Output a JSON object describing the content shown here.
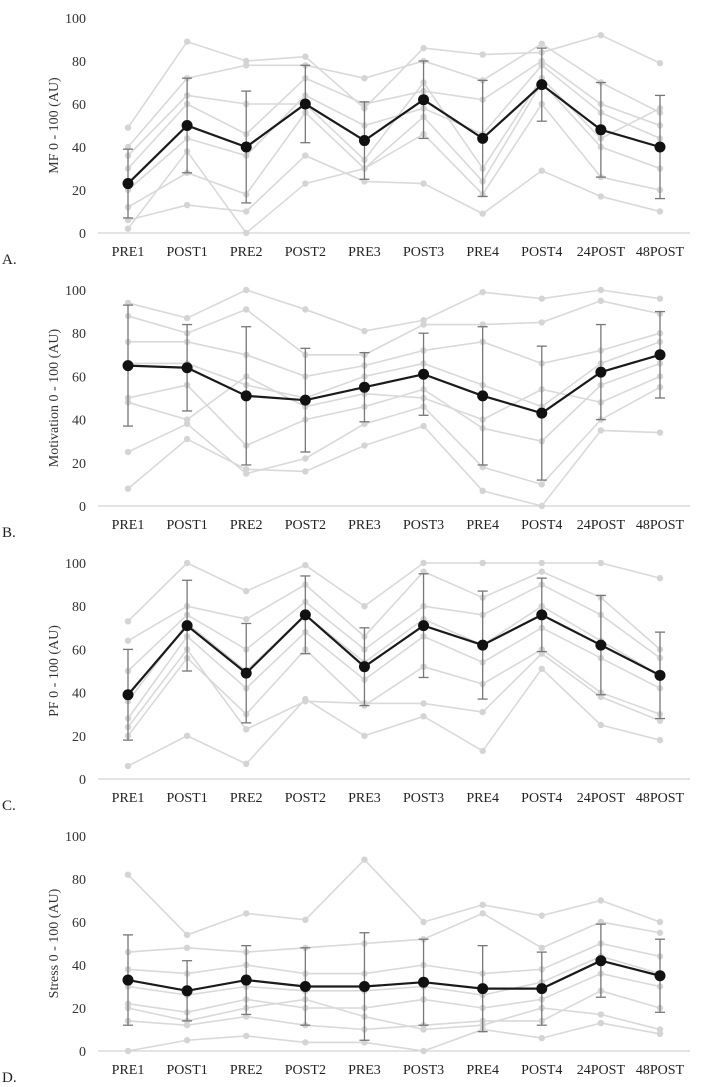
{
  "chart_data": [
    {
      "type": "line",
      "panel_label": "A.",
      "ylabel": "MF 0 - 100 (AU)",
      "ylim": [
        0,
        100
      ],
      "yticks": [
        0,
        20,
        40,
        60,
        80,
        100
      ],
      "categories": [
        "PRE1",
        "POST1",
        "PRE2",
        "POST2",
        "PRE3",
        "POST3",
        "PRE4",
        "POST4",
        "24POST",
        "48POST"
      ],
      "series": [
        {
          "name": "Mean",
          "values": [
            23,
            50,
            40,
            60,
            43,
            62,
            44,
            69,
            48,
            40
          ],
          "sd": [
            16,
            22,
            26,
            18,
            18,
            18,
            27,
            17,
            22,
            24
          ]
        }
      ],
      "participants": [
        [
          49,
          89,
          80,
          82,
          58,
          86,
          83,
          84,
          92,
          79
        ],
        [
          40,
          72,
          78,
          78,
          72,
          80,
          71,
          88,
          70,
          56
        ],
        [
          30,
          60,
          46,
          72,
          60,
          66,
          62,
          80,
          60,
          50
        ],
        [
          20,
          44,
          36,
          64,
          50,
          58,
          46,
          78,
          56,
          44
        ],
        [
          12,
          28,
          18,
          56,
          30,
          54,
          24,
          70,
          40,
          30
        ],
        [
          6,
          13,
          10,
          36,
          24,
          23,
          9,
          29,
          17,
          10
        ],
        [
          2,
          38,
          0,
          23,
          30,
          46,
          18,
          60,
          26,
          20
        ],
        [
          36,
          64,
          60,
          60,
          34,
          70,
          30,
          72,
          44,
          58
        ]
      ]
    },
    {
      "type": "line",
      "panel_label": "B.",
      "ylabel": "Motivation 0 - 100 (AU)",
      "ylim": [
        0,
        100
      ],
      "yticks": [
        0,
        20,
        40,
        60,
        80,
        100
      ],
      "categories": [
        "PRE1",
        "POST1",
        "PRE2",
        "POST2",
        "PRE3",
        "POST3",
        "PRE4",
        "POST4",
        "24POST",
        "48POST"
      ],
      "series": [
        {
          "name": "Mean",
          "values": [
            65,
            64,
            51,
            49,
            55,
            61,
            51,
            43,
            62,
            70
          ],
          "sd": [
            28,
            20,
            32,
            24,
            16,
            19,
            32,
            31,
            22,
            20
          ]
        }
      ],
      "participants": [
        [
          94,
          87,
          100,
          91,
          81,
          86,
          99,
          96,
          100,
          96
        ],
        [
          88,
          80,
          91,
          70,
          70,
          84,
          84,
          85,
          95,
          89
        ],
        [
          76,
          76,
          70,
          60,
          65,
          72,
          76,
          66,
          72,
          80
        ],
        [
          66,
          66,
          56,
          50,
          60,
          66,
          56,
          46,
          66,
          76
        ],
        [
          50,
          56,
          28,
          40,
          46,
          54,
          36,
          30,
          56,
          66
        ],
        [
          25,
          38,
          15,
          22,
          38,
          46,
          18,
          10,
          40,
          55
        ],
        [
          8,
          31,
          17,
          16,
          28,
          37,
          7,
          0,
          35,
          34
        ],
        [
          48,
          40,
          60,
          46,
          52,
          50,
          40,
          54,
          48,
          60
        ]
      ]
    },
    {
      "type": "line",
      "panel_label": "C.",
      "ylabel": "PF 0 - 100 (AU)",
      "ylim": [
        0,
        100
      ],
      "yticks": [
        0,
        20,
        40,
        60,
        80,
        100
      ],
      "categories": [
        "PRE1",
        "POST1",
        "PRE2",
        "POST2",
        "PRE3",
        "POST3",
        "PRE4",
        "POST4",
        "24POST",
        "48POST"
      ],
      "series": [
        {
          "name": "Mean",
          "values": [
            39,
            71,
            49,
            76,
            52,
            71,
            62,
            76,
            62,
            48
          ],
          "sd": [
            21,
            21,
            23,
            18,
            18,
            24,
            25,
            17,
            23,
            20
          ]
        }
      ],
      "participants": [
        [
          73,
          100,
          87,
          99,
          80,
          100,
          100,
          100,
          100,
          93
        ],
        [
          64,
          80,
          74,
          90,
          66,
          96,
          84,
          96,
          84,
          60
        ],
        [
          50,
          76,
          60,
          82,
          60,
          80,
          76,
          90,
          76,
          56
        ],
        [
          36,
          72,
          50,
          76,
          54,
          74,
          62,
          80,
          64,
          48
        ],
        [
          28,
          66,
          42,
          68,
          46,
          66,
          54,
          70,
          56,
          42
        ],
        [
          20,
          56,
          30,
          60,
          34,
          52,
          44,
          60,
          40,
          30
        ],
        [
          6,
          20,
          7,
          37,
          20,
          29,
          13,
          51,
          25,
          18
        ],
        [
          24,
          60,
          23,
          36,
          35,
          35,
          31,
          58,
          38,
          27
        ]
      ]
    },
    {
      "type": "line",
      "panel_label": "D.",
      "ylabel": "Stress 0 - 100 (AU)",
      "ylim": [
        0,
        100
      ],
      "yticks": [
        0,
        20,
        40,
        60,
        80,
        100
      ],
      "categories": [
        "PRE1",
        "POST1",
        "PRE2",
        "POST2",
        "PRE3",
        "POST3",
        "PRE4",
        "POST4",
        "24POST",
        "48POST"
      ],
      "series": [
        {
          "name": "Mean",
          "values": [
            33,
            28,
            33,
            30,
            30,
            32,
            29,
            29,
            42,
            35
          ],
          "sd": [
            21,
            14,
            16,
            18,
            25,
            20,
            20,
            17,
            17,
            17
          ]
        }
      ],
      "participants": [
        [
          82,
          54,
          64,
          61,
          89,
          60,
          68,
          63,
          70,
          60
        ],
        [
          46,
          48,
          46,
          48,
          50,
          52,
          64,
          48,
          60,
          55
        ],
        [
          38,
          36,
          40,
          36,
          36,
          40,
          36,
          38,
          50,
          44
        ],
        [
          30,
          26,
          30,
          28,
          28,
          30,
          26,
          32,
          44,
          36
        ],
        [
          22,
          18,
          24,
          20,
          20,
          24,
          20,
          24,
          36,
          30
        ],
        [
          14,
          12,
          16,
          12,
          10,
          12,
          14,
          14,
          28,
          20
        ],
        [
          0,
          5,
          7,
          4,
          4,
          0,
          10,
          6,
          13,
          8
        ],
        [
          20,
          14,
          20,
          24,
          16,
          10,
          12,
          20,
          17,
          10
        ]
      ]
    }
  ]
}
